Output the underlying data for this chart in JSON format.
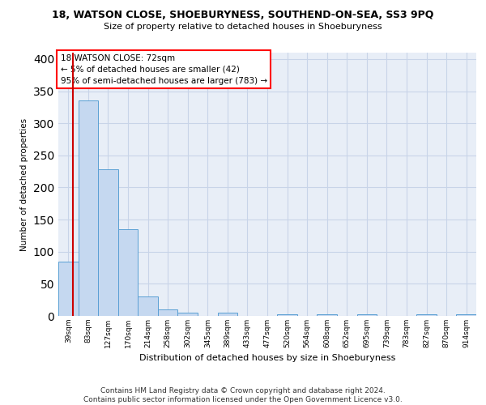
{
  "title_line1": "18, WATSON CLOSE, SHOEBURYNESS, SOUTHEND-ON-SEA, SS3 9PQ",
  "title_line2": "Size of property relative to detached houses in Shoeburyness",
  "xlabel": "Distribution of detached houses by size in Shoeburyness",
  "ylabel": "Number of detached properties",
  "footer": "Contains HM Land Registry data © Crown copyright and database right 2024.\nContains public sector information licensed under the Open Government Licence v3.0.",
  "categories": [
    "39sqm",
    "83sqm",
    "127sqm",
    "170sqm",
    "214sqm",
    "258sqm",
    "302sqm",
    "345sqm",
    "389sqm",
    "433sqm",
    "477sqm",
    "520sqm",
    "564sqm",
    "608sqm",
    "652sqm",
    "695sqm",
    "739sqm",
    "783sqm",
    "827sqm",
    "870sqm",
    "914sqm"
  ],
  "values": [
    85,
    335,
    228,
    135,
    30,
    10,
    5,
    0,
    5,
    0,
    0,
    2,
    0,
    2,
    0,
    2,
    0,
    0,
    2,
    0,
    2
  ],
  "bar_color": "#c5d8f0",
  "bar_edge_color": "#5a9fd4",
  "annotation_line_color": "#cc0000",
  "annotation_box_text": "18 WATSON CLOSE: 72sqm\n← 5% of detached houses are smaller (42)\n95% of semi-detached houses are larger (783) →",
  "ylim": [
    0,
    410
  ],
  "yticks": [
    0,
    50,
    100,
    150,
    200,
    250,
    300,
    350,
    400
  ],
  "grid_color": "#c8d4e8",
  "background_color": "#e8eef7",
  "fig_bg_color": "#ffffff"
}
